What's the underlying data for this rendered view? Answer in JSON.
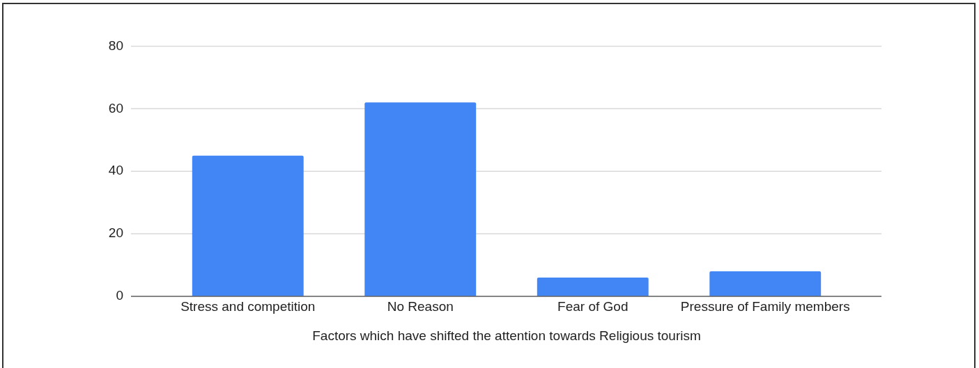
{
  "chart_data": {
    "type": "bar",
    "xlabel": "Factors which have shifted the attention towards Religious tourism",
    "categories": [
      "Stress and competition",
      "No Reason",
      "Fear of God",
      "Pressure of Family members"
    ],
    "values": [
      45,
      62,
      6,
      8
    ],
    "color": "#4285f4",
    "ylim": [
      0,
      80
    ],
    "yticks": [
      0,
      20,
      40,
      60,
      80
    ],
    "grid": "y"
  }
}
